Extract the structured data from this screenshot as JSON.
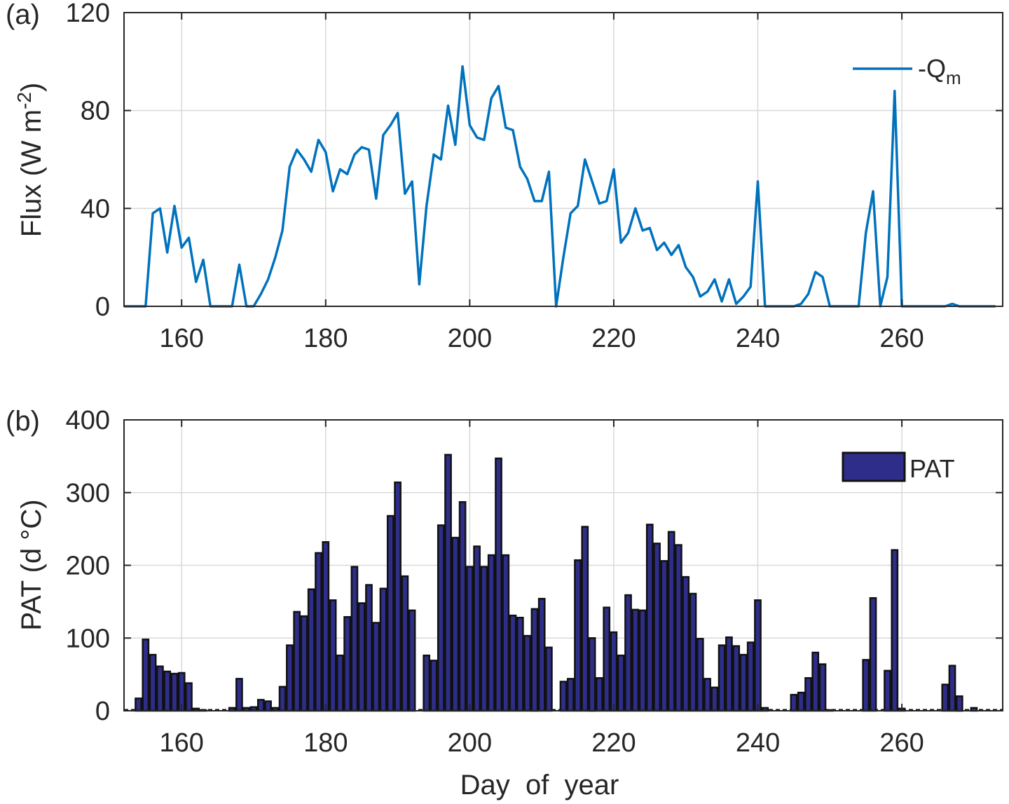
{
  "chart_data": [
    {
      "type": "line",
      "panel_label": "(a)",
      "xlabel": "",
      "ylabel": "Flux (W m",
      "ylabel_sup": "-2",
      "ylabel_close": ")",
      "xlim": [
        152,
        274
      ],
      "ylim": [
        0,
        120
      ],
      "xticks": [
        160,
        180,
        200,
        220,
        240,
        260
      ],
      "yticks": [
        0,
        40,
        80,
        120
      ],
      "grid": true,
      "legend_position": "top-right",
      "series": [
        {
          "name": "-Q",
          "name_sub": "m",
          "color": "#0072BD",
          "x": [
            152,
            153,
            154,
            155,
            156,
            157,
            158,
            159,
            160,
            161,
            162,
            163,
            164,
            165,
            166,
            167,
            168,
            169,
            170,
            171,
            172,
            173,
            174,
            175,
            176,
            177,
            178,
            179,
            180,
            181,
            182,
            183,
            184,
            185,
            186,
            187,
            188,
            189,
            190,
            191,
            192,
            193,
            194,
            195,
            196,
            197,
            198,
            199,
            200,
            201,
            202,
            203,
            204,
            205,
            206,
            207,
            208,
            209,
            210,
            211,
            212,
            213,
            214,
            215,
            216,
            217,
            218,
            219,
            220,
            221,
            222,
            223,
            224,
            225,
            226,
            227,
            228,
            229,
            230,
            231,
            232,
            233,
            234,
            235,
            236,
            237,
            238,
            239,
            240,
            241,
            242,
            243,
            244,
            245,
            246,
            247,
            248,
            249,
            250,
            251,
            252,
            253,
            254,
            255,
            256,
            257,
            258,
            259,
            260,
            261,
            262,
            263,
            264,
            265,
            266,
            267,
            268,
            269,
            270,
            271,
            272,
            273
          ],
          "y": [
            0,
            0,
            0,
            0,
            38,
            40,
            22,
            41,
            24,
            28,
            10,
            19,
            0,
            0,
            0,
            0,
            17,
            0,
            0,
            5,
            11,
            20,
            31,
            57,
            64,
            60,
            55,
            68,
            63,
            47,
            56,
            54,
            62,
            65,
            64,
            44,
            70,
            74,
            79,
            46,
            51,
            9,
            41,
            62,
            60,
            82,
            66,
            98,
            74,
            69,
            68,
            85,
            90,
            73,
            72,
            57,
            52,
            43,
            43,
            55,
            0,
            20,
            38,
            41,
            60,
            51,
            42,
            43,
            56,
            26,
            30,
            40,
            31,
            32,
            23,
            26,
            21,
            25,
            16,
            12,
            4,
            6,
            11,
            2,
            11,
            1,
            4,
            8,
            51,
            0,
            0,
            0,
            0,
            0,
            1,
            5,
            14,
            12,
            0,
            0,
            0,
            0,
            0,
            30,
            47,
            0,
            12,
            88,
            0,
            0,
            0,
            0,
            0,
            0,
            0,
            1,
            0,
            0,
            0,
            0,
            0,
            0
          ]
        }
      ]
    },
    {
      "type": "bar",
      "panel_label": "(b)",
      "xlabel": "Day  of  year",
      "ylabel": "PAT (d °C)",
      "xlim": [
        152,
        274
      ],
      "ylim": [
        0,
        400
      ],
      "xticks": [
        160,
        180,
        200,
        220,
        240,
        260
      ],
      "yticks": [
        0,
        100,
        200,
        300,
        400
      ],
      "grid": true,
      "legend_position": "top-right",
      "series": [
        {
          "name": "PAT",
          "color": "#2E2E8A",
          "edge_color": "#111111",
          "x": [
            154,
            155,
            156,
            157,
            158,
            159,
            160,
            161,
            162,
            163,
            167,
            168,
            169,
            170,
            171,
            172,
            173,
            174,
            175,
            176,
            177,
            178,
            179,
            180,
            181,
            182,
            183,
            184,
            185,
            186,
            187,
            188,
            189,
            190,
            191,
            192,
            194,
            195,
            196,
            197,
            198,
            199,
            200,
            201,
            202,
            203,
            204,
            205,
            206,
            207,
            208,
            209,
            210,
            211,
            213,
            214,
            215,
            216,
            217,
            218,
            219,
            220,
            221,
            222,
            223,
            224,
            225,
            226,
            227,
            228,
            229,
            230,
            231,
            232,
            233,
            234,
            235,
            236,
            237,
            238,
            239,
            240,
            241,
            245,
            246,
            247,
            248,
            249,
            250,
            255,
            256,
            258,
            259,
            260,
            266,
            267,
            268,
            270
          ],
          "values": [
            17,
            98,
            77,
            61,
            54,
            51,
            52,
            38,
            3,
            1,
            4,
            44,
            4,
            5,
            15,
            13,
            4,
            33,
            90,
            136,
            130,
            167,
            217,
            232,
            152,
            76,
            129,
            198,
            148,
            173,
            121,
            168,
            268,
            314,
            185,
            138,
            76,
            69,
            255,
            352,
            238,
            287,
            198,
            226,
            198,
            214,
            347,
            214,
            131,
            128,
            103,
            140,
            154,
            87,
            40,
            44,
            207,
            253,
            100,
            45,
            142,
            108,
            76,
            159,
            139,
            138,
            256,
            230,
            206,
            246,
            228,
            184,
            161,
            99,
            44,
            32,
            90,
            101,
            89,
            77,
            94,
            152,
            4,
            22,
            25,
            45,
            80,
            64,
            1,
            70,
            155,
            55,
            221,
            3,
            36,
            62,
            20,
            4
          ]
        }
      ]
    }
  ]
}
